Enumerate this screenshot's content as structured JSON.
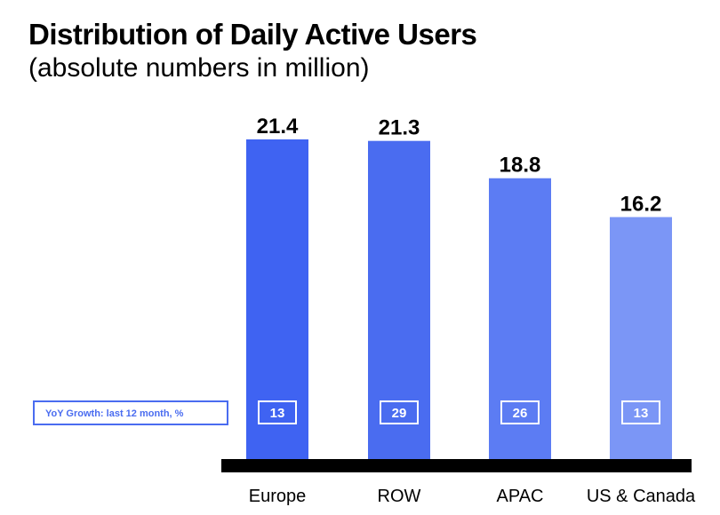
{
  "title": "Distribution of Daily Active Users",
  "subtitle": "(absolute numbers in million)",
  "chart_data": {
    "type": "bar",
    "title": "Distribution of Daily Active Users",
    "subtitle": "(absolute numbers in million)",
    "categories": [
      "Europe",
      "ROW",
      "APAC",
      "US & Canada"
    ],
    "values": [
      21.4,
      21.3,
      18.8,
      16.2
    ],
    "value_labels": [
      "21.4",
      "21.3",
      "18.8",
      "16.2"
    ],
    "yoy_growth_label": "YoY Growth: last 12 month, %",
    "yoy_growth": [
      13,
      29,
      26,
      13
    ],
    "ylim": [
      0,
      21.4
    ],
    "xlabel": "",
    "ylabel": "",
    "grid": false,
    "colors": [
      "#3f63f2",
      "#4a6cf0",
      "#5c7cf3",
      "#7b96f6"
    ],
    "axis_color": "#000000"
  }
}
